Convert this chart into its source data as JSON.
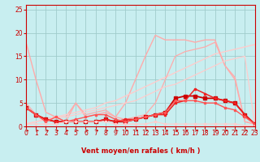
{
  "bg_color": "#c8eef0",
  "grid_color": "#a0cccc",
  "xlabel": "Vent moyen/en rafales ( km/h )",
  "xlim": [
    0,
    23
  ],
  "ylim": [
    0,
    26
  ],
  "xticks": [
    0,
    1,
    2,
    3,
    4,
    5,
    6,
    7,
    8,
    9,
    10,
    11,
    12,
    13,
    14,
    15,
    16,
    17,
    18,
    19,
    20,
    21,
    22,
    23
  ],
  "yticks": [
    0,
    5,
    10,
    15,
    20,
    25
  ],
  "series": [
    {
      "x": [
        0,
        1,
        2,
        3,
        4,
        5,
        6,
        7,
        8,
        9,
        10,
        11,
        12,
        13,
        14,
        15,
        16,
        17,
        18,
        19,
        20,
        21,
        22,
        23
      ],
      "y": [
        18,
        10,
        3,
        2,
        2,
        5,
        2,
        2.5,
        3,
        2,
        5,
        10,
        15,
        19.5,
        18.5,
        18.5,
        18.5,
        18,
        18.5,
        18.5,
        13,
        10.5,
        1,
        0.5
      ],
      "color": "#ffaaaa",
      "lw": 1.0,
      "marker": null
    },
    {
      "x": [
        0,
        1,
        2,
        3,
        4,
        5,
        6,
        7,
        8,
        9,
        10,
        11,
        12,
        13,
        14,
        15,
        16,
        17,
        18,
        19,
        20,
        21,
        22,
        23
      ],
      "y": [
        0.5,
        1,
        1.5,
        2,
        2.5,
        3,
        3.5,
        4,
        5,
        5.5,
        6.5,
        7.5,
        8.5,
        9.5,
        10.5,
        11.5,
        12.5,
        13.5,
        14.5,
        15.5,
        16,
        16.5,
        17,
        17.5
      ],
      "color": "#ffcccc",
      "lw": 1.0,
      "marker": null
    },
    {
      "x": [
        0,
        1,
        2,
        3,
        4,
        5,
        6,
        7,
        8,
        9,
        10,
        11,
        12,
        13,
        14,
        15,
        16,
        17,
        18,
        19,
        20,
        21,
        22,
        23
      ],
      "y": [
        5,
        2.5,
        1.5,
        2,
        1,
        5,
        2.5,
        3,
        3.5,
        2,
        1.5,
        2,
        2.5,
        5,
        10,
        15,
        16,
        16.5,
        17,
        18,
        13,
        10,
        1,
        0.5
      ],
      "color": "#ffaaaa",
      "lw": 0.9,
      "marker": null
    },
    {
      "x": [
        0,
        1,
        2,
        3,
        4,
        5,
        6,
        7,
        8,
        9,
        10,
        11,
        12,
        13,
        14,
        15,
        16,
        17,
        18,
        19,
        20,
        21,
        22,
        23
      ],
      "y": [
        0.5,
        1,
        1.5,
        2,
        2,
        2.5,
        3,
        3.5,
        4,
        4.5,
        5,
        5.5,
        6.5,
        7.5,
        8.5,
        9,
        10,
        11,
        12,
        13,
        14,
        14.5,
        15,
        0.5
      ],
      "color": "#ffcccc",
      "lw": 0.9,
      "marker": null
    },
    {
      "x": [
        0,
        1,
        2,
        3,
        4,
        5,
        6,
        7,
        8,
        9,
        10,
        11,
        12,
        13,
        14,
        15,
        16,
        17,
        18,
        19,
        20,
        21,
        22,
        23
      ],
      "y": [
        4,
        2.5,
        1.5,
        1,
        1,
        1,
        1,
        1,
        1.5,
        1,
        1,
        1.5,
        2,
        2.5,
        3,
        6,
        6.5,
        6.5,
        6,
        6,
        5.5,
        5,
        2.5,
        0.5
      ],
      "color": "#cc0000",
      "lw": 1.3,
      "marker": "s",
      "ms": 2.5
    },
    {
      "x": [
        0,
        1,
        2,
        3,
        4,
        5,
        6,
        7,
        8,
        9,
        10,
        11,
        12,
        13,
        14,
        15,
        16,
        17,
        18,
        19,
        20,
        21,
        22,
        23
      ],
      "y": [
        4,
        2.5,
        1.5,
        1,
        1,
        1,
        1,
        1,
        1.5,
        1,
        1.5,
        1.5,
        2,
        2.5,
        2.5,
        5,
        5.5,
        8,
        7,
        6,
        5.5,
        5,
        2.5,
        0.5
      ],
      "color": "#ee2222",
      "lw": 1.1,
      "marker": "s",
      "ms": 2.0
    },
    {
      "x": [
        0,
        1,
        2,
        3,
        4,
        5,
        6,
        7,
        8,
        9,
        10,
        11,
        12,
        13,
        14,
        15,
        16,
        17,
        18,
        19,
        20,
        21,
        22,
        23
      ],
      "y": [
        4,
        2.5,
        1,
        2,
        1,
        1.5,
        2,
        2.5,
        2.5,
        1.5,
        1,
        1.5,
        2,
        2.5,
        3,
        5.5,
        5.5,
        5.5,
        5,
        5,
        4,
        3.5,
        2,
        0.5
      ],
      "color": "#ff5555",
      "lw": 1.0,
      "marker": "s",
      "ms": 2.0
    },
    {
      "x": [
        0,
        1,
        2,
        3,
        4,
        5,
        6,
        7,
        8,
        9,
        10,
        11,
        12,
        13,
        14,
        15,
        16,
        17,
        18,
        19,
        20,
        21,
        22,
        23
      ],
      "y": [
        0.5,
        0.5,
        0.5,
        0.5,
        1,
        1,
        1,
        1,
        1,
        0.5,
        0.5,
        0.5,
        0.5,
        1,
        0.5,
        0.5,
        0.5,
        0.5,
        0.5,
        0.5,
        0.5,
        0.5,
        0.2,
        0.2
      ],
      "color": "#ffcccc",
      "lw": 0.8,
      "marker": "s",
      "ms": 1.5
    }
  ],
  "wind_arrows": [
    {
      "x_start": 0.0,
      "x_end": 0.25,
      "y": -0.9
    },
    {
      "x_start": 1.0,
      "x_end": 1.25,
      "y": -0.9
    },
    {
      "x_start": 2.0,
      "x_end": 2.25,
      "y": -0.9
    },
    {
      "x_start": 3.0,
      "x_end": 3.25,
      "y": -0.9
    },
    {
      "x_start": 4.0,
      "x_end": 4.25,
      "y": -0.9
    },
    {
      "x_start": 5.0,
      "x_end": 5.25,
      "y": -0.9
    },
    {
      "x_start": 6.0,
      "x_end": 6.25,
      "y": -0.9
    },
    {
      "x_start": 7.0,
      "x_end": 7.25,
      "y": -0.9
    },
    {
      "x_start": 8.0,
      "x_end": 8.25,
      "y": -0.9
    },
    {
      "x_start": 9.0,
      "x_end": 9.25,
      "y": -0.9
    },
    {
      "x_start": 10.0,
      "x_end": 10.25,
      "y": -0.9
    },
    {
      "x_start": 11.0,
      "x_end": 11.25,
      "y": -0.9
    },
    {
      "x_start": 12.0,
      "x_end": 12.25,
      "y": -0.9
    },
    {
      "x_start": 13.0,
      "x_end": 13.25,
      "y": -0.9
    },
    {
      "x_start": 14.0,
      "x_end": 14.25,
      "y": -0.9
    },
    {
      "x_start": 15.0,
      "x_end": 15.25,
      "y": -0.9
    },
    {
      "x_start": 16.0,
      "x_end": 16.25,
      "y": -0.9
    },
    {
      "x_start": 17.0,
      "x_end": 17.25,
      "y": -0.9
    },
    {
      "x_start": 18.0,
      "x_end": 18.25,
      "y": -0.9
    },
    {
      "x_start": 19.0,
      "x_end": 19.25,
      "y": -0.9
    },
    {
      "x_start": 20.0,
      "x_end": 20.25,
      "y": -0.9
    },
    {
      "x_start": 21.0,
      "x_end": 21.25,
      "y": -0.9
    },
    {
      "x_start": 22.0,
      "x_end": 22.25,
      "y": -0.9
    },
    {
      "x_start": 23.0,
      "x_end": 23.25,
      "y": -0.9
    }
  ],
  "xlabel_color": "#cc0000",
  "tick_color": "#cc0000",
  "axis_color": "#cc0000",
  "xlabel_fontsize": 6.0,
  "tick_fontsize": 5.5
}
